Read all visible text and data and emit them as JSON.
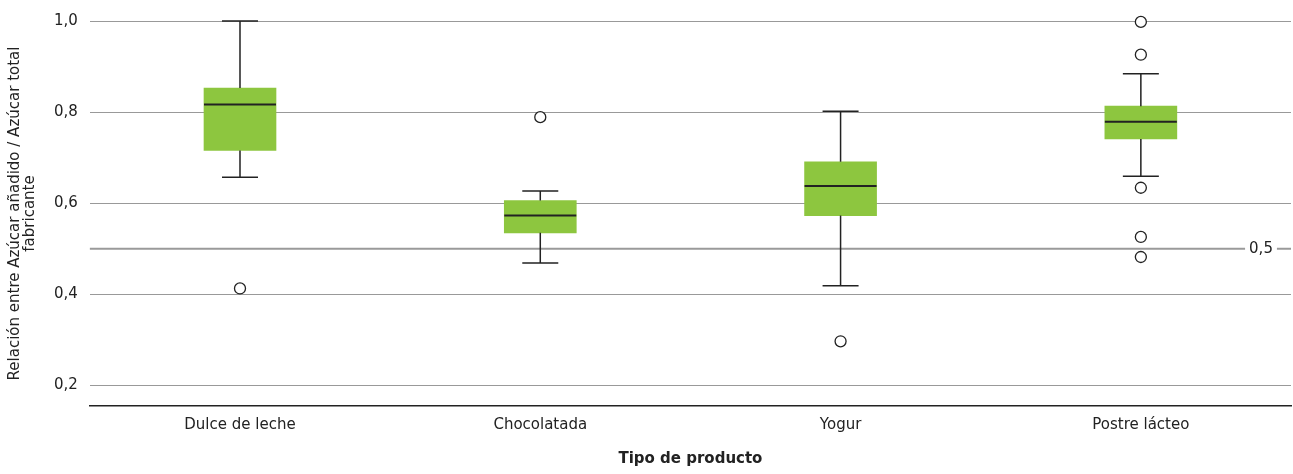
{
  "chart_data": {
    "type": "box",
    "xlabel": "Tipo de producto",
    "ylabel": "Relación entre Azúcar añadido / Azúcar total\nfabricante",
    "categories": [
      "Dulce de leche",
      "Chocolatada",
      "Yogur",
      "Postre lácteo"
    ],
    "color": "#8dc63f",
    "boxes": [
      {
        "low": 0.657,
        "q1": 0.716,
        "median": 0.817,
        "q3": 0.853,
        "high": 1.0,
        "outliers": [
          0.413
        ]
      },
      {
        "low": 0.469,
        "q1": 0.535,
        "median": 0.573,
        "q3": 0.606,
        "high": 0.627,
        "outliers": [
          0.789
        ]
      },
      {
        "low": 0.419,
        "q1": 0.573,
        "median": 0.638,
        "q3": 0.691,
        "high": 0.802,
        "outliers": [
          0.297
        ]
      },
      {
        "low": 0.659,
        "q1": 0.741,
        "median": 0.779,
        "q3": 0.813,
        "high": 0.884,
        "outliers": [
          0.998,
          0.926,
          0.634,
          0.526,
          0.482
        ]
      }
    ],
    "ylim": [
      0.155,
      1.0
    ],
    "yticks": [
      {
        "value": 0.2,
        "label": "0,2"
      },
      {
        "value": 0.4,
        "label": "0,4"
      },
      {
        "value": 0.6,
        "label": "0,6"
      },
      {
        "value": 0.8,
        "label": "0,8"
      },
      {
        "value": 1.0,
        "label": "1,0"
      }
    ],
    "grid": "y",
    "ref_lines": [
      {
        "axis": "y",
        "value": 0.5,
        "label": "0,5",
        "color": "#9a9a9a"
      }
    ]
  }
}
